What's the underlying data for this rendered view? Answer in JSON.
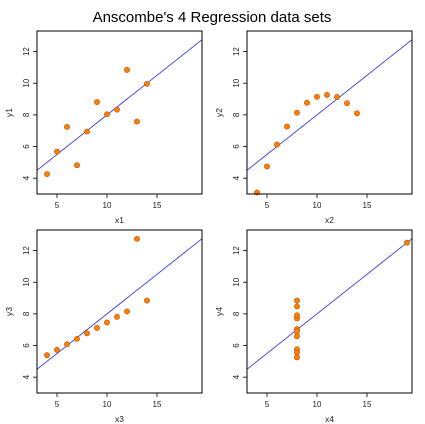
{
  "chart_title": "Anscombe's 4 Regression data sets",
  "colors": {
    "point_fill": "#ff8000",
    "point_stroke": "#b84d00",
    "line": "#3c3cdc",
    "frame": "#000000"
  },
  "chart_data": [
    {
      "type": "scatter",
      "xlabel": "x1",
      "ylabel": "y1",
      "xlim": [
        3,
        19.5
      ],
      "ylim": [
        3,
        13.3
      ],
      "xticks": [
        5,
        10,
        15
      ],
      "yticks": [
        4,
        6,
        8,
        10,
        12
      ],
      "x": [
        10,
        8,
        13,
        9,
        11,
        14,
        6,
        4,
        12,
        7,
        5
      ],
      "y": [
        8.04,
        6.95,
        7.58,
        8.81,
        8.33,
        9.96,
        7.24,
        4.26,
        10.84,
        4.82,
        5.68
      ],
      "regression": {
        "intercept": 3.0,
        "slope": 0.5
      }
    },
    {
      "type": "scatter",
      "xlabel": "x2",
      "ylabel": "y2",
      "xlim": [
        3,
        19.5
      ],
      "ylim": [
        3,
        13.3
      ],
      "xticks": [
        5,
        10,
        15
      ],
      "yticks": [
        4,
        6,
        8,
        10,
        12
      ],
      "x": [
        10,
        8,
        13,
        9,
        11,
        14,
        6,
        4,
        12,
        7,
        5
      ],
      "y": [
        9.14,
        8.14,
        8.74,
        8.77,
        9.26,
        8.1,
        6.13,
        3.1,
        9.13,
        7.26,
        4.74
      ],
      "regression": {
        "intercept": 3.0,
        "slope": 0.5
      }
    },
    {
      "type": "scatter",
      "xlabel": "x3",
      "ylabel": "y3",
      "xlim": [
        3,
        19.5
      ],
      "ylim": [
        3,
        13.3
      ],
      "xticks": [
        5,
        10,
        15
      ],
      "yticks": [
        4,
        6,
        8,
        10,
        12
      ],
      "x": [
        10,
        8,
        13,
        9,
        11,
        14,
        6,
        4,
        12,
        7,
        5
      ],
      "y": [
        7.46,
        6.77,
        12.74,
        7.11,
        7.81,
        8.84,
        6.08,
        5.39,
        8.15,
        6.42,
        5.73
      ],
      "regression": {
        "intercept": 3.0,
        "slope": 0.5
      }
    },
    {
      "type": "scatter",
      "xlabel": "x4",
      "ylabel": "y4",
      "xlim": [
        3,
        19.5
      ],
      "ylim": [
        3,
        13.3
      ],
      "xticks": [
        5,
        10,
        15
      ],
      "yticks": [
        4,
        6,
        8,
        10,
        12
      ],
      "x": [
        8,
        8,
        8,
        8,
        8,
        8,
        8,
        19,
        8,
        8,
        8
      ],
      "y": [
        6.58,
        5.76,
        7.71,
        8.84,
        8.47,
        7.04,
        5.25,
        12.5,
        5.56,
        7.91,
        6.89
      ],
      "regression": {
        "intercept": 3.0,
        "slope": 0.5
      }
    }
  ]
}
